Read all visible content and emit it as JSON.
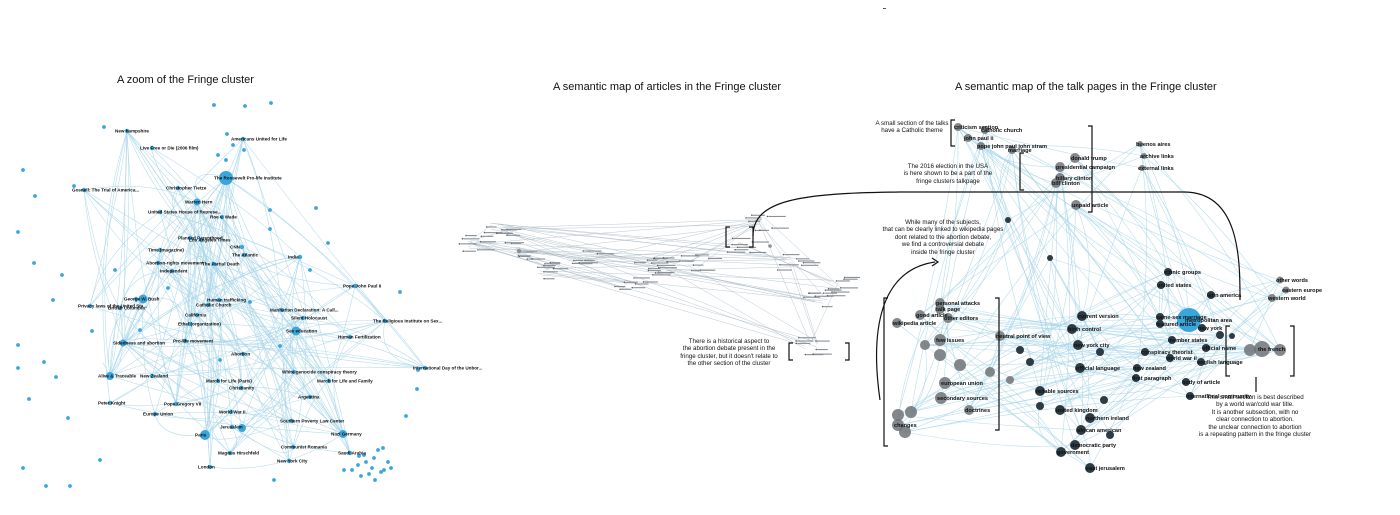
{
  "titles": {
    "left": "A zoom of the Fringe cluster",
    "middle": "A semantic map of articles in the Fringe cluster",
    "right": "A semantic map of the talk pages in the Fringe cluster"
  },
  "annotations": {
    "catholic": "A small section of the talks\nhave a Catholic theme",
    "election": "The 2016 election in the USA\nis here shown to be a part of the\nfringe clusters talkpage",
    "debate": "While many of the subjects,\nthat can be clearly linked to wikipedia pages\ndont related to the abortion debate,\nwe find a controversial debate\ninside the fringe cluster",
    "historical": "There is a historical aspect to\nthe abortion debate present in the\nfringe cluster, but it doesn't relate to\nthe other section of the cluster",
    "worldwar": "This small section is best described\nby a world war/cold war title.\nIt is another subsection, with no\nclear connection to abortion.\nthe unclear connection to abortion\nis a repeating pattern in the fringe cluster"
  },
  "colors": {
    "accent": "#3aa6dc",
    "edge": "#a8d6e8",
    "dark_node": "#2d3b44",
    "gray_node": "#6e7378"
  },
  "fringe_labels": [
    {
      "text": "New hampshire"
    },
    {
      "text": "Americans United for Life"
    },
    {
      "text": "Live Free or Die (2006 film)"
    },
    {
      "text": "Gosnell: The Trial of America..."
    },
    {
      "text": "The Roosevelt Pro-life Institute"
    },
    {
      "text": "Christopher Tietze"
    },
    {
      "text": "Warren Hern"
    },
    {
      "text": "United States House of Represe..."
    },
    {
      "text": "Roe v. Wade"
    },
    {
      "text": "Planned Parenthood"
    },
    {
      "text": "Los Angeles Times"
    },
    {
      "text": "Time (magazine)"
    },
    {
      "text": "CNN"
    },
    {
      "text": "The Atlantic"
    },
    {
      "text": "Abortion-rights movement"
    },
    {
      "text": "The Partial Death"
    },
    {
      "text": "Independent"
    },
    {
      "text": "India"
    },
    {
      "text": "Pope John Paul II"
    },
    {
      "text": "Manhattan Declaration: A Call..."
    },
    {
      "text": "George W. Bush"
    },
    {
      "text": "Privacy laws of the United Sta..."
    },
    {
      "text": "Catholic Church"
    },
    {
      "text": "British Columbia"
    },
    {
      "text": "Human trafficking"
    },
    {
      "text": "California"
    },
    {
      "text": "Silent Holocaust"
    },
    {
      "text": "Sex education"
    },
    {
      "text": "The Religious Institute on Sex..."
    },
    {
      "text": "Ethel (organization)"
    },
    {
      "text": "Abortion"
    },
    {
      "text": "Sidedness and abortion"
    },
    {
      "text": "Pro-life movement"
    },
    {
      "text": "Human Fertilization"
    },
    {
      "text": "White genocide conspiracy theory"
    },
    {
      "text": "International Day of the Unbor..."
    },
    {
      "text": "Alive & Traceable"
    },
    {
      "text": "New Zealand"
    },
    {
      "text": "March for Life (Paris)"
    },
    {
      "text": "March for Life and Family"
    },
    {
      "text": "Christianity"
    },
    {
      "text": "Peter Knight"
    },
    {
      "text": "Pope Gregory VII"
    },
    {
      "text": "Europe Union"
    },
    {
      "text": "World War II"
    },
    {
      "text": "Argentina"
    },
    {
      "text": "Southern Poverty Law Center"
    },
    {
      "text": "Jerusalem"
    },
    {
      "text": "Nazi Germany"
    },
    {
      "text": "Paris"
    },
    {
      "text": "Saudi Arabia"
    },
    {
      "text": "Communist Romania"
    },
    {
      "text": "New York City"
    },
    {
      "text": "Magnus Hirschfeld"
    },
    {
      "text": "London"
    }
  ],
  "talk_labels": [
    {
      "text": "criticism section"
    },
    {
      "text": "catholic church"
    },
    {
      "text": "john paul ii"
    },
    {
      "text": "pope john paul john stram"
    },
    {
      "text": "marriage"
    },
    {
      "text": "donald trump"
    },
    {
      "text": "presidential campaign"
    },
    {
      "text": "hillary clinton"
    },
    {
      "text": "bill clinton"
    },
    {
      "text": "archive links"
    },
    {
      "text": "external links"
    },
    {
      "text": "buenos aires"
    },
    {
      "text": "unpaid article"
    },
    {
      "text": "other words"
    },
    {
      "text": "eastern europe"
    },
    {
      "text": "western world"
    },
    {
      "text": "ethnic groups"
    },
    {
      "text": "united states"
    },
    {
      "text": "latin america"
    },
    {
      "text": "personal attacks"
    },
    {
      "text": "talk page"
    },
    {
      "text": "good article"
    },
    {
      "text": "other editors"
    },
    {
      "text": "wikipedia article"
    },
    {
      "text": "few issues"
    },
    {
      "text": "neutral point of view"
    },
    {
      "text": "current version"
    },
    {
      "text": "birth control"
    },
    {
      "text": "same-sex marriage"
    },
    {
      "text": "featured article"
    },
    {
      "text": "metropolitan area"
    },
    {
      "text": "new york"
    },
    {
      "text": "new york city"
    },
    {
      "text": "conspiracy theorist"
    },
    {
      "text": "member states"
    },
    {
      "text": "official name"
    },
    {
      "text": "the french"
    },
    {
      "text": "world war ii"
    },
    {
      "text": "english language"
    },
    {
      "text": "official language"
    },
    {
      "text": "first paragraph"
    },
    {
      "text": "new zealand"
    },
    {
      "text": "european union"
    },
    {
      "text": "reliable sources"
    },
    {
      "text": "body of article"
    },
    {
      "text": "international community"
    },
    {
      "text": "united kingdom"
    },
    {
      "text": "northern ireland"
    },
    {
      "text": "african american"
    },
    {
      "text": "democratic party"
    },
    {
      "text": "government"
    },
    {
      "text": "east jerusalem"
    },
    {
      "text": "secondary sources"
    },
    {
      "text": "doctrines"
    },
    {
      "text": "changes"
    }
  ]
}
